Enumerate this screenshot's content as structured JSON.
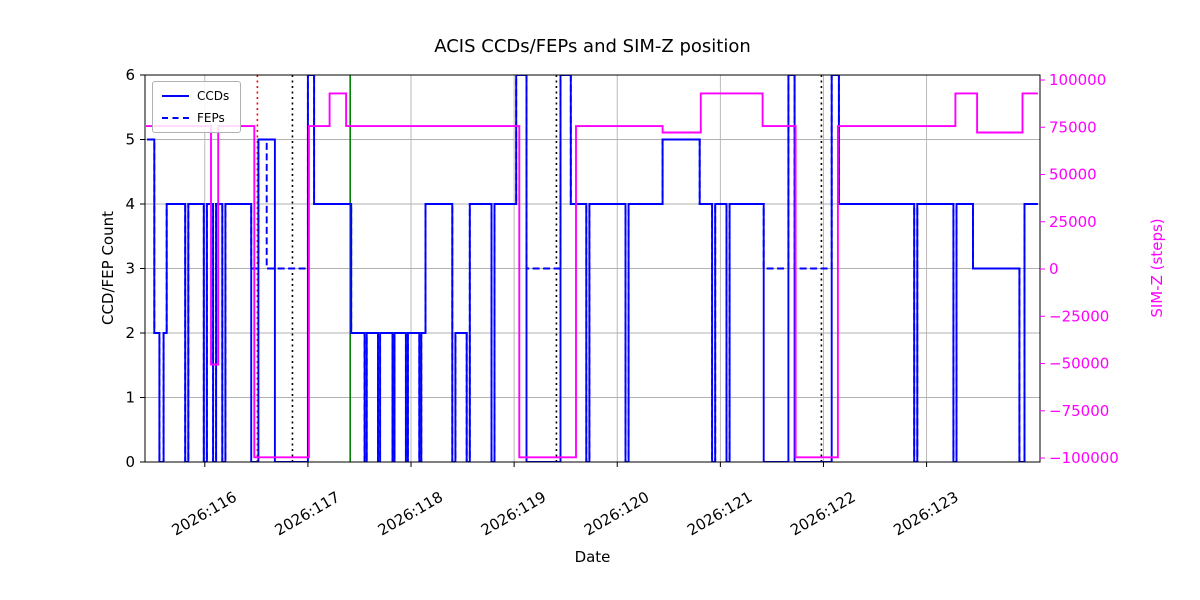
{
  "title": "ACIS CCDs/FEPs and SIM-Z position",
  "x_axis_label": "Date",
  "y_left_label": "CCD/FEP Count",
  "y_right_label": "SIM-Z (steps)",
  "legend": {
    "items": [
      {
        "label": "CCDs",
        "style": "solid"
      },
      {
        "label": "FEPs",
        "style": "dashed"
      }
    ]
  },
  "colors": {
    "ccds": "#0000ff",
    "feps": "#0000ff",
    "simz": "#ff00ff",
    "grid": "#b2b2b2",
    "spine": "#000000",
    "vline_red": "#ff0000",
    "vline_black": "#000000",
    "vline_green": "#008000"
  },
  "chart_data": {
    "type": "line",
    "title": "ACIS CCDs/FEPs and SIM-Z position",
    "xlabel": "Date",
    "ylabel_left": "CCD/FEP Count",
    "ylabel_right": "SIM-Z (steps)",
    "grid": true,
    "legend_position": "upper left",
    "x_range": [
      115.42,
      124.1
    ],
    "x_end": 124.08,
    "x_ticks": [
      {
        "v": 116,
        "label": "2026:116"
      },
      {
        "v": 117,
        "label": "2026:117"
      },
      {
        "v": 118,
        "label": "2026:118"
      },
      {
        "v": 119,
        "label": "2026:119"
      },
      {
        "v": 120,
        "label": "2026:120"
      },
      {
        "v": 121,
        "label": "2026:121"
      },
      {
        "v": 122,
        "label": "2026:122"
      },
      {
        "v": 123,
        "label": "2026:123"
      }
    ],
    "y_left_range": [
      0,
      6
    ],
    "y_left_ticks": [
      0,
      1,
      2,
      3,
      4,
      5,
      6
    ],
    "y_right_range": [
      -102100,
      102650
    ],
    "y_right_ticks": [
      {
        "v": 100000,
        "label": "100000"
      },
      {
        "v": 75000,
        "label": "75000"
      },
      {
        "v": 50000,
        "label": "50000"
      },
      {
        "v": 25000,
        "label": "25000"
      },
      {
        "v": 0,
        "label": "0"
      },
      {
        "v": -25000,
        "label": "−25000"
      },
      {
        "v": -50000,
        "label": "−50000"
      },
      {
        "v": -75000,
        "label": "−75000"
      },
      {
        "v": -100000,
        "label": "−100000"
      }
    ],
    "vlines": [
      {
        "x": 116.51,
        "color": "#ff0000",
        "style": "dotted"
      },
      {
        "x": 116.85,
        "color": "#000000",
        "style": "dotted"
      },
      {
        "x": 117.41,
        "color": "#008000",
        "style": "solid"
      },
      {
        "x": 119.41,
        "color": "#000000",
        "style": "dotted"
      },
      {
        "x": 121.98,
        "color": "#000000",
        "style": "dotted"
      }
    ],
    "series": [
      {
        "name": "CCDs",
        "color": "#0000ff",
        "style": "solid",
        "axis": "left",
        "step": "post",
        "points": [
          [
            115.44,
            5
          ],
          [
            115.51,
            2
          ],
          [
            115.56,
            0
          ],
          [
            115.6,
            2
          ],
          [
            115.63,
            4
          ],
          [
            115.81,
            0
          ],
          [
            115.84,
            4
          ],
          [
            115.99,
            0
          ],
          [
            116.02,
            4
          ],
          [
            116.08,
            0
          ],
          [
            116.11,
            4
          ],
          [
            116.17,
            0
          ],
          [
            116.2,
            4
          ],
          [
            116.45,
            0
          ],
          [
            116.52,
            5
          ],
          [
            116.68,
            0
          ],
          [
            117.0,
            6
          ],
          [
            117.06,
            4
          ],
          [
            117.42,
            2
          ],
          [
            117.55,
            0
          ],
          [
            117.57,
            2
          ],
          [
            117.68,
            0
          ],
          [
            117.7,
            2
          ],
          [
            117.82,
            0
          ],
          [
            117.84,
            2
          ],
          [
            117.95,
            0
          ],
          [
            117.97,
            2
          ],
          [
            118.08,
            0
          ],
          [
            118.1,
            2
          ],
          [
            118.14,
            4
          ],
          [
            118.4,
            0
          ],
          [
            118.43,
            2
          ],
          [
            118.54,
            0
          ],
          [
            118.57,
            4
          ],
          [
            118.78,
            0
          ],
          [
            118.81,
            4
          ],
          [
            119.02,
            6
          ],
          [
            119.12,
            0
          ],
          [
            119.45,
            6
          ],
          [
            119.55,
            4
          ],
          [
            119.7,
            0
          ],
          [
            119.73,
            4
          ],
          [
            120.08,
            0
          ],
          [
            120.11,
            4
          ],
          [
            120.44,
            5
          ],
          [
            120.8,
            4
          ],
          [
            120.92,
            0
          ],
          [
            120.95,
            4
          ],
          [
            121.06,
            0
          ],
          [
            121.09,
            4
          ],
          [
            121.42,
            0
          ],
          [
            121.66,
            6
          ],
          [
            121.72,
            0
          ],
          [
            122.08,
            6
          ],
          [
            122.15,
            4
          ],
          [
            122.88,
            0
          ],
          [
            122.91,
            4
          ],
          [
            123.26,
            0
          ],
          [
            123.29,
            4
          ],
          [
            123.45,
            3
          ],
          [
            123.9,
            0
          ],
          [
            123.95,
            4
          ]
        ]
      },
      {
        "name": "FEPs",
        "color": "#0000ff",
        "style": "dashed",
        "axis": "left",
        "step": "post",
        "points": [
          [
            115.44,
            5
          ],
          [
            115.51,
            2
          ],
          [
            115.56,
            0
          ],
          [
            115.6,
            2
          ],
          [
            115.63,
            4
          ],
          [
            115.81,
            0
          ],
          [
            115.84,
            4
          ],
          [
            115.99,
            0
          ],
          [
            116.02,
            4
          ],
          [
            116.08,
            0
          ],
          [
            116.11,
            4
          ],
          [
            116.17,
            0
          ],
          [
            116.2,
            4
          ],
          [
            116.45,
            3
          ],
          [
            116.52,
            5
          ],
          [
            116.6,
            3
          ],
          [
            117.0,
            6
          ],
          [
            117.06,
            4
          ],
          [
            117.42,
            2
          ],
          [
            117.55,
            0
          ],
          [
            117.57,
            2
          ],
          [
            117.68,
            0
          ],
          [
            117.7,
            2
          ],
          [
            117.82,
            0
          ],
          [
            117.84,
            2
          ],
          [
            117.95,
            0
          ],
          [
            117.97,
            2
          ],
          [
            118.08,
            0
          ],
          [
            118.1,
            2
          ],
          [
            118.14,
            4
          ],
          [
            118.4,
            0
          ],
          [
            118.43,
            2
          ],
          [
            118.54,
            0
          ],
          [
            118.57,
            4
          ],
          [
            118.78,
            0
          ],
          [
            118.81,
            4
          ],
          [
            119.02,
            6
          ],
          [
            119.12,
            3
          ],
          [
            119.45,
            6
          ],
          [
            119.55,
            4
          ],
          [
            119.7,
            0
          ],
          [
            119.73,
            4
          ],
          [
            120.08,
            0
          ],
          [
            120.11,
            4
          ],
          [
            120.44,
            5
          ],
          [
            120.8,
            4
          ],
          [
            120.92,
            0
          ],
          [
            120.95,
            4
          ],
          [
            121.06,
            0
          ],
          [
            121.09,
            4
          ],
          [
            121.42,
            3
          ],
          [
            121.66,
            6
          ],
          [
            121.72,
            3
          ],
          [
            122.08,
            6
          ],
          [
            122.15,
            4
          ],
          [
            122.88,
            0
          ],
          [
            122.91,
            4
          ],
          [
            123.26,
            0
          ],
          [
            123.29,
            4
          ],
          [
            123.45,
            3
          ],
          [
            123.9,
            0
          ],
          [
            123.95,
            4
          ]
        ]
      },
      {
        "name": "SIM-Z",
        "color": "#ff00ff",
        "style": "solid",
        "axis": "right",
        "step": "post",
        "points": [
          [
            115.43,
            75624
          ],
          [
            116.06,
            -50505
          ],
          [
            116.13,
            75624
          ],
          [
            116.48,
            -99616
          ],
          [
            117.01,
            75624
          ],
          [
            117.21,
            92904
          ],
          [
            117.37,
            75624
          ],
          [
            119.05,
            -99616
          ],
          [
            119.6,
            75624
          ],
          [
            120.44,
            72204
          ],
          [
            120.81,
            92904
          ],
          [
            121.41,
            75624
          ],
          [
            121.73,
            -99616
          ],
          [
            122.14,
            75624
          ],
          [
            123.28,
            92904
          ],
          [
            123.49,
            72204
          ],
          [
            123.93,
            92904
          ]
        ]
      }
    ]
  }
}
